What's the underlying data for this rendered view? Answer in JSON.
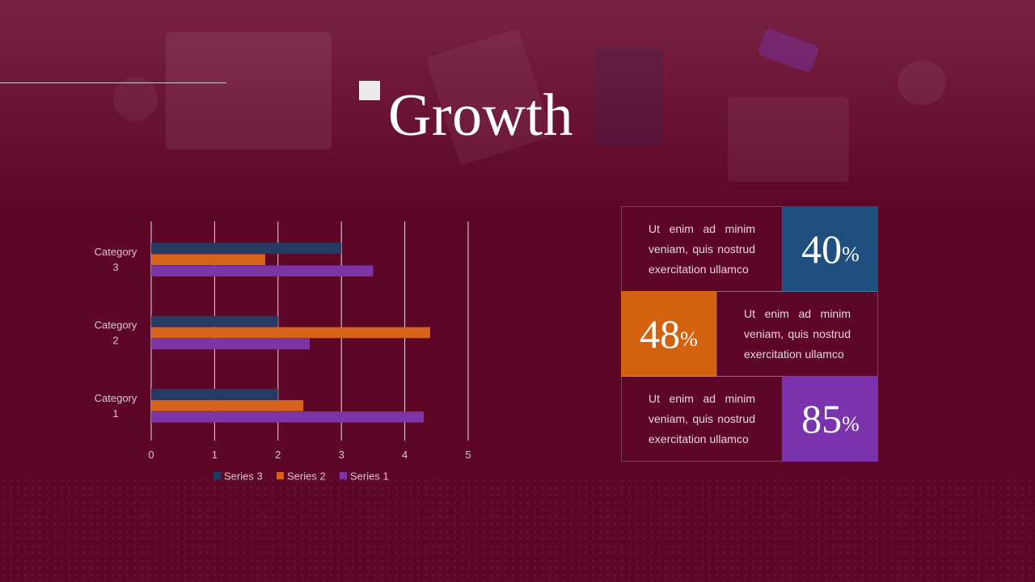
{
  "slide": {
    "title": "Growth"
  },
  "colors": {
    "background": "#5e0628",
    "series3": "#243c63",
    "series2": "#d7631a",
    "series1": "#7d34a7",
    "stat_blue": "#1e4f7f",
    "stat_orange": "#d3620f",
    "stat_purple": "#7b33ad"
  },
  "chart_data": {
    "type": "bar",
    "orientation": "horizontal",
    "categories": [
      "Category 1",
      "Category 2",
      "Category 3"
    ],
    "category_labels": [
      [
        "Category",
        "1"
      ],
      [
        "Category",
        "2"
      ],
      [
        "Category",
        "3"
      ]
    ],
    "series": [
      {
        "name": "Series 3",
        "values": [
          2,
          2,
          3
        ],
        "color": "#243c63"
      },
      {
        "name": "Series 2",
        "values": [
          2.4,
          4.4,
          1.8
        ],
        "color": "#d7631a"
      },
      {
        "name": "Series 1",
        "values": [
          4.3,
          2.5,
          3.5
        ],
        "color": "#7d34a7"
      }
    ],
    "xlim": [
      0,
      5
    ],
    "xticks": [
      "0",
      "1",
      "2",
      "3",
      "4",
      "5"
    ],
    "grid": "vertical",
    "legend": "bottom"
  },
  "stats": [
    {
      "text": "Ut enim ad minim veniam, quis nostrud exercitation ullamco",
      "value": "40",
      "unit": "%",
      "color": "#1e4f7f"
    },
    {
      "text": "Ut enim ad minim veniam, quis nostrud exercitation ullamco",
      "value": "48",
      "unit": "%",
      "color": "#d3620f"
    },
    {
      "text": "Ut enim ad minim veniam, quis nostrud exercitation ullamco",
      "value": "85",
      "unit": "%",
      "color": "#7b33ad"
    }
  ]
}
